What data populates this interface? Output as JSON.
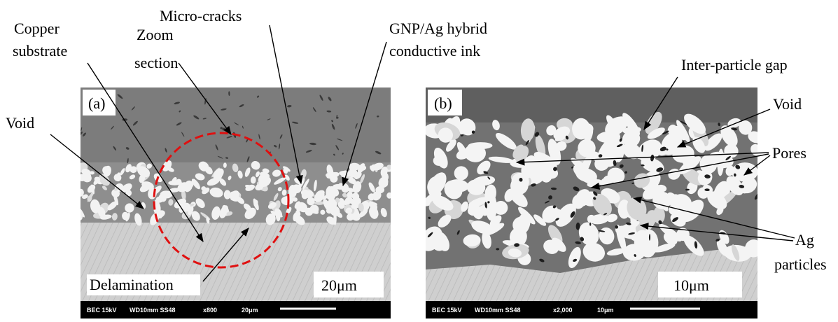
{
  "panels": [
    {
      "label": "(a)",
      "scale_label": "20μm",
      "info_bar": [
        "BEC 15kV",
        "WD10mm SS48",
        "x800",
        "20μm"
      ]
    },
    {
      "label": "(b)",
      "scale_label": "10μm",
      "info_bar": [
        "BEC 15kV",
        "WD10mm SS48",
        "x2,000",
        "10μm"
      ]
    }
  ],
  "annotations": [
    {
      "lines": [
        "Copper",
        "substrate"
      ]
    },
    {
      "lines": [
        "Zoom",
        "section"
      ]
    },
    {
      "lines": [
        "Micro-cracks"
      ]
    },
    {
      "lines": [
        "GNP/Ag hybrid",
        "conductive ink"
      ]
    },
    {
      "lines": [
        "Void"
      ]
    },
    {
      "lines": [
        "Delamination"
      ]
    },
    {
      "lines": [
        "Inter-particle gap"
      ]
    },
    {
      "lines": [
        "Void"
      ]
    },
    {
      "lines": [
        "Pores"
      ]
    },
    {
      "lines": [
        "Ag",
        "particles"
      ]
    }
  ]
}
